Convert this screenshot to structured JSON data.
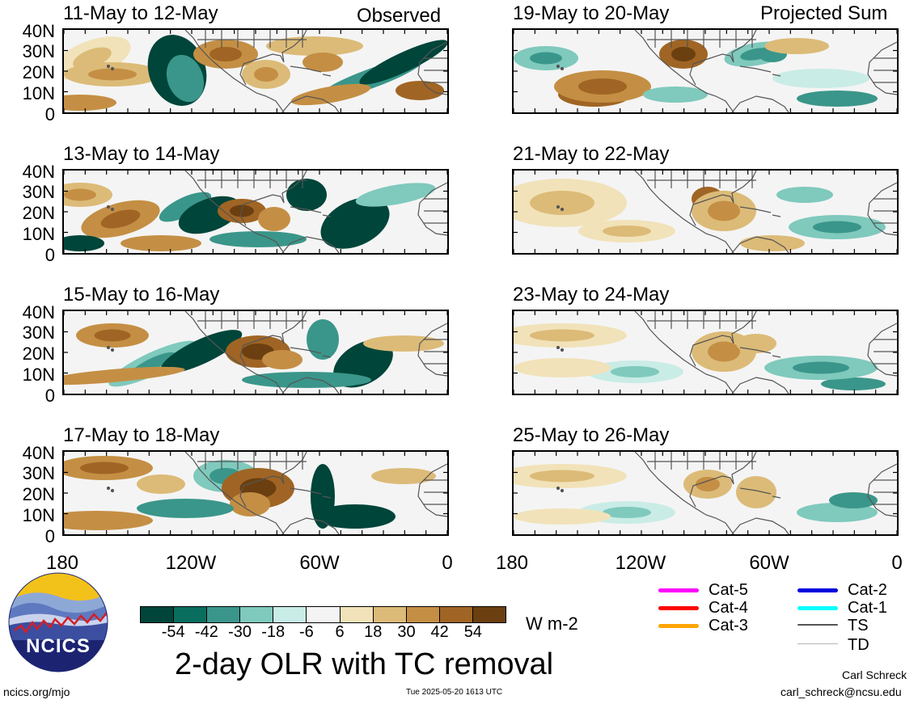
{
  "observed_label": "Observed",
  "projected_label": "Projected Sum",
  "panels": {
    "p1": {
      "title": "11-May to 12-May"
    },
    "p2": {
      "title": "13-May to 14-May"
    },
    "p3": {
      "title": "15-May to 16-May"
    },
    "p4": {
      "title": "17-May to 18-May"
    },
    "p5": {
      "title": "19-May to 20-May"
    },
    "p6": {
      "title": "21-May to 22-May"
    },
    "p7": {
      "title": "23-May to 24-May"
    },
    "p8": {
      "title": "25-May to 26-May"
    }
  },
  "lat_ticks": [
    "40N",
    "30N",
    "20N",
    "10N",
    "0"
  ],
  "lon_ticks": [
    "180",
    "120W",
    "60W",
    "0"
  ],
  "colorbar": {
    "labels": [
      "-54",
      "-42",
      "-30",
      "-18",
      "-6",
      "6",
      "18",
      "30",
      "42",
      "54"
    ],
    "colors": [
      "#00453a",
      "#0a6e5f",
      "#3a968a",
      "#7fc9bd",
      "#c9ece6",
      "#f4f4f4",
      "#f1e2b9",
      "#dcbb78",
      "#c48f44",
      "#a06524",
      "#6b3f10"
    ],
    "units": "W m-2"
  },
  "main_title": "2-day OLR with TC removal",
  "tc_legend": [
    {
      "label": "Cat-5",
      "color": "#ff00ff"
    },
    {
      "label": "Cat-4",
      "color": "#ff0000"
    },
    {
      "label": "Cat-3",
      "color": "#ffa500"
    },
    {
      "label": "Cat-2",
      "color": "#0000dd"
    },
    {
      "label": "Cat-1",
      "color": "#00ffff"
    },
    {
      "label": "TS",
      "color": "#555555"
    },
    {
      "label": "TD",
      "color": "#b5b5b5"
    }
  ],
  "logo_text": "NCICS",
  "footer": {
    "url": "ncics.org/mjo",
    "timestamp": "Tue 2025-05-20 1613 UTC",
    "author": "Carl Schreck",
    "email": "carl_schreck@ncsu.edu"
  }
}
